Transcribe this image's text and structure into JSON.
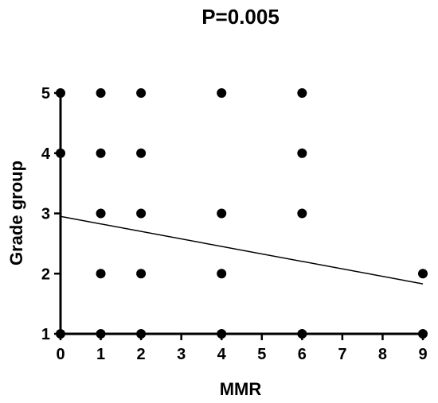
{
  "chart_data": {
    "type": "scatter",
    "title": "P=0.005",
    "xlabel": "MMR",
    "ylabel": "Grade group",
    "xlim": [
      0,
      9
    ],
    "ylim": [
      1,
      5
    ],
    "x_ticks": [
      "0",
      "1",
      "2",
      "3",
      "4",
      "5",
      "6",
      "7",
      "8",
      "9"
    ],
    "y_ticks": [
      "1",
      "2",
      "3",
      "4",
      "5"
    ],
    "grid": false,
    "legend": "none",
    "points": [
      {
        "x": 0,
        "y": 1
      },
      {
        "x": 0,
        "y": 4
      },
      {
        "x": 0,
        "y": 5
      },
      {
        "x": 1,
        "y": 1
      },
      {
        "x": 1,
        "y": 2
      },
      {
        "x": 1,
        "y": 3
      },
      {
        "x": 1,
        "y": 4
      },
      {
        "x": 1,
        "y": 5
      },
      {
        "x": 2,
        "y": 1
      },
      {
        "x": 2,
        "y": 2
      },
      {
        "x": 2,
        "y": 3
      },
      {
        "x": 2,
        "y": 4
      },
      {
        "x": 2,
        "y": 5
      },
      {
        "x": 4,
        "y": 1
      },
      {
        "x": 4,
        "y": 2
      },
      {
        "x": 4,
        "y": 3
      },
      {
        "x": 4,
        "y": 5
      },
      {
        "x": 6,
        "y": 1
      },
      {
        "x": 6,
        "y": 3
      },
      {
        "x": 6,
        "y": 4
      },
      {
        "x": 6,
        "y": 5
      },
      {
        "x": 9,
        "y": 1
      },
      {
        "x": 9,
        "y": 2
      }
    ],
    "trend_line": {
      "x": [
        0,
        9
      ],
      "y": [
        2.95,
        1.83
      ]
    },
    "colors": {
      "points": "#000000",
      "line": "#000000",
      "axes": "#000000"
    }
  }
}
